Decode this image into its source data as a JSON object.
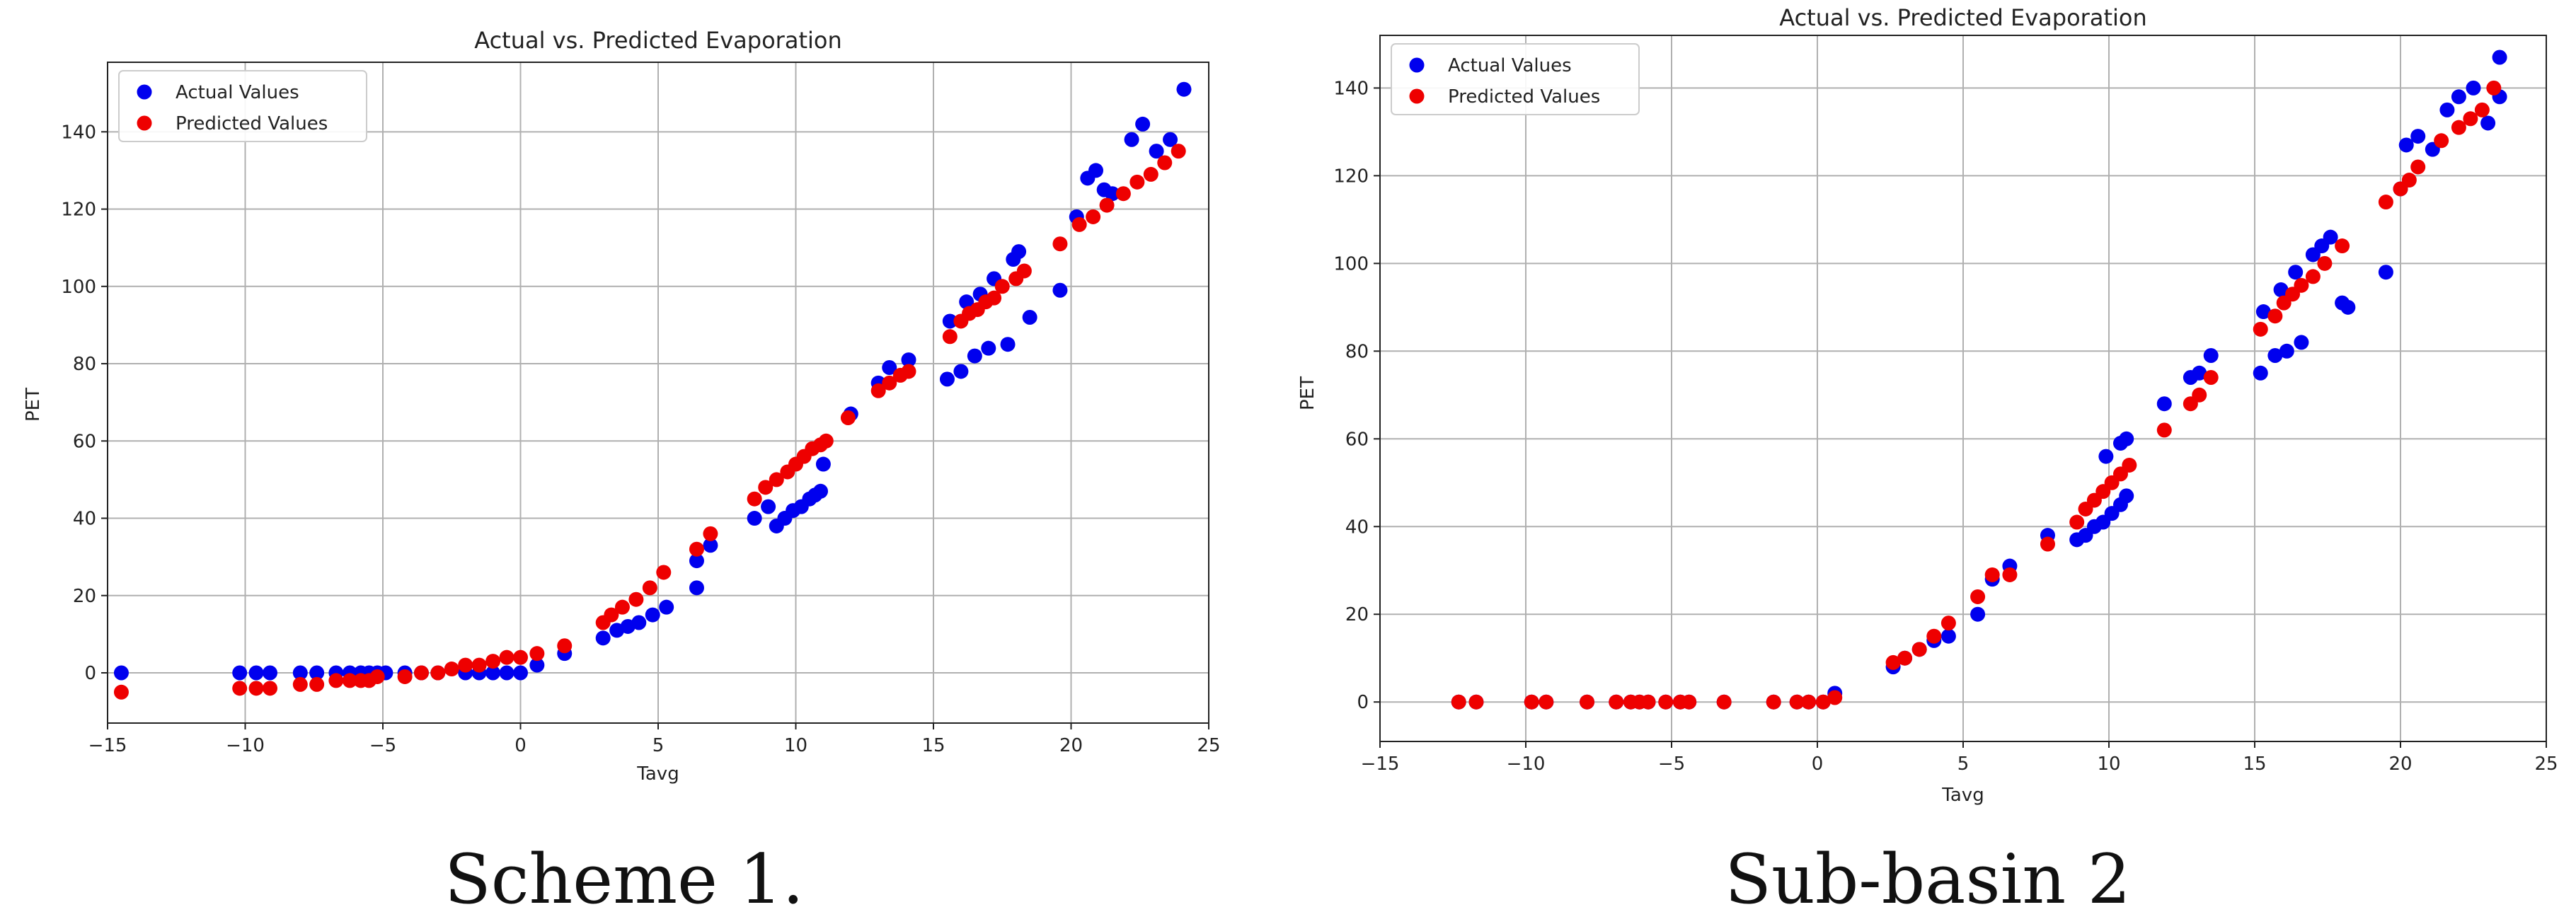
{
  "captions": [
    "Scheme 1.",
    "Sub-basin 2"
  ],
  "colors": {
    "actual": "#0000ee",
    "predicted": "#ee0000",
    "grid": "#b0b0b0"
  },
  "chart_data": [
    {
      "type": "scatter",
      "title": "Actual vs. Predicted Evaporation",
      "xlabel": "Tavg",
      "ylabel": "PET",
      "xlim": [
        -15,
        25
      ],
      "ylim": [
        -13,
        158
      ],
      "xticks": [
        -15,
        -10,
        -5,
        0,
        5,
        10,
        15,
        20,
        25
      ],
      "xtick_labels": [
        "−15",
        "−10",
        "−5",
        "0",
        "5",
        "10",
        "15",
        "20",
        "25"
      ],
      "yticks": [
        0,
        20,
        40,
        60,
        80,
        100,
        120,
        140
      ],
      "ytick_labels": [
        "0",
        "20",
        "40",
        "60",
        "80",
        "100",
        "120",
        "140"
      ],
      "grid": true,
      "legend": "top-left",
      "series": [
        {
          "name": "Actual Values",
          "color": "#0000ee",
          "x": [
            -14.5,
            -10.2,
            -9.6,
            -9.1,
            -8.0,
            -7.4,
            -6.7,
            -6.2,
            -5.8,
            -5.5,
            -5.2,
            -4.9,
            -4.2,
            -3.6,
            -3.0,
            -2.0,
            -1.5,
            -1.0,
            -0.5,
            0.0,
            0.6,
            1.6,
            3.0,
            3.5,
            3.9,
            4.3,
            4.8,
            5.3,
            6.4,
            6.9,
            8.5,
            9.0,
            9.3,
            9.6,
            9.9,
            10.2,
            10.5,
            10.7,
            10.9,
            11.0,
            12.0,
            13.0,
            13.4,
            14.1,
            15.5,
            15.6,
            16.0,
            16.2,
            16.5,
            16.7,
            17.0,
            17.2,
            17.7,
            17.9,
            18.1,
            18.5,
            19.6,
            20.2,
            20.6,
            20.9,
            21.2,
            21.5,
            22.2,
            22.6,
            23.1,
            23.6,
            24.1
          ],
          "y": [
            0,
            0,
            0,
            0,
            0,
            0,
            0,
            0,
            0,
            0,
            0,
            0,
            0,
            0,
            0,
            0,
            0,
            0,
            0,
            0,
            2,
            5,
            9,
            11,
            12,
            13,
            15,
            17,
            22,
            33,
            40,
            43,
            38,
            40,
            42,
            43,
            45,
            46,
            47,
            54,
            67,
            75,
            79,
            81,
            76,
            91,
            78,
            96,
            82,
            98,
            84,
            102,
            85,
            107,
            109,
            92,
            99,
            118,
            128,
            130,
            125,
            124,
            138,
            142,
            135,
            138,
            151
          ],
          "y_secondary": [
            0,
            0,
            0,
            0,
            0,
            0,
            0,
            0,
            0,
            0,
            0,
            0,
            0,
            0,
            0,
            0,
            0,
            0,
            0,
            0,
            0,
            0,
            0,
            0,
            0,
            0,
            0,
            0,
            29,
            0,
            0,
            0,
            0,
            0,
            0,
            0,
            0,
            0,
            0,
            0,
            0,
            0,
            0,
            0,
            0,
            0,
            0,
            0,
            0,
            0,
            0,
            0,
            0,
            0,
            0,
            0,
            0,
            0,
            0,
            0,
            0,
            0,
            0,
            0,
            0,
            0,
            0
          ]
        },
        {
          "name": "Predicted Values",
          "color": "#ee0000",
          "x": [
            -14.5,
            -10.2,
            -9.6,
            -9.1,
            -8.0,
            -7.4,
            -6.7,
            -6.2,
            -5.8,
            -5.5,
            -5.2,
            -4.2,
            -3.6,
            -3.0,
            -2.5,
            -2.0,
            -1.5,
            -1.0,
            -0.5,
            0.0,
            0.6,
            1.6,
            3.0,
            3.3,
            3.7,
            4.2,
            4.7,
            5.2,
            6.4,
            6.9,
            8.5,
            8.9,
            9.3,
            9.7,
            10.0,
            10.3,
            10.6,
            10.9,
            11.1,
            11.9,
            13.0,
            13.4,
            13.8,
            14.1,
            15.6,
            16.0,
            16.3,
            16.6,
            16.9,
            17.2,
            17.5,
            18.0,
            18.3,
            19.6,
            20.3,
            20.8,
            21.3,
            21.9,
            22.4,
            22.9,
            23.4,
            23.9
          ],
          "y": [
            -5,
            -4,
            -4,
            -4,
            -3,
            -3,
            -2,
            -2,
            -2,
            -2,
            -1,
            -1,
            0,
            0,
            1,
            2,
            2,
            3,
            4,
            4,
            5,
            7,
            13,
            15,
            17,
            19,
            22,
            26,
            32,
            36,
            45,
            48,
            50,
            52,
            54,
            56,
            58,
            59,
            60,
            66,
            73,
            75,
            77,
            78,
            87,
            91,
            93,
            94,
            96,
            97,
            100,
            102,
            104,
            111,
            116,
            118,
            121,
            124,
            127,
            129,
            132,
            135
          ]
        }
      ]
    },
    {
      "type": "scatter",
      "title": "Actual vs. Predicted Evaporation",
      "xlabel": "Tavg",
      "ylabel": "PET",
      "xlim": [
        -15,
        25
      ],
      "ylim": [
        -9,
        152
      ],
      "xticks": [
        -15,
        -10,
        -5,
        0,
        5,
        10,
        15,
        20,
        25
      ],
      "xtick_labels": [
        "−15",
        "−10",
        "−5",
        "0",
        "5",
        "10",
        "15",
        "20",
        "25"
      ],
      "yticks": [
        0,
        20,
        40,
        60,
        80,
        100,
        120,
        140
      ],
      "ytick_labels": [
        "0",
        "20",
        "40",
        "60",
        "80",
        "100",
        "120",
        "140"
      ],
      "grid": true,
      "legend": "top-left",
      "series": [
        {
          "name": "Actual Values",
          "color": "#0000ee",
          "x": [
            -12.3,
            -11.7,
            -9.8,
            -9.3,
            -7.9,
            -6.9,
            -6.4,
            -6.1,
            -5.8,
            -5.2,
            -4.7,
            -4.4,
            -3.2,
            -1.5,
            -0.7,
            -0.3,
            0.2,
            0.6,
            2.6,
            3.0,
            3.5,
            4.0,
            4.5,
            5.5,
            6.0,
            6.6,
            7.9,
            8.9,
            9.2,
            9.5,
            9.8,
            10.1,
            10.4,
            10.6,
            9.9,
            10.4,
            10.6,
            11.9,
            12.8,
            13.1,
            13.5,
            15.2,
            15.3,
            15.7,
            15.9,
            16.1,
            16.4,
            16.6,
            17.0,
            17.3,
            17.6,
            18.0,
            18.2,
            19.5,
            20.0,
            20.2,
            20.6,
            21.1,
            21.6,
            22.0,
            22.5,
            23.0,
            23.4
          ],
          "y": [
            0,
            0,
            0,
            0,
            0,
            0,
            0,
            0,
            0,
            0,
            0,
            0,
            0,
            0,
            0,
            0,
            0,
            2,
            8,
            10,
            12,
            14,
            15,
            20,
            28,
            31,
            38,
            37,
            38,
            40,
            41,
            43,
            45,
            47,
            56,
            59,
            60,
            68,
            74,
            75,
            79,
            75,
            89,
            79,
            94,
            80,
            98,
            82,
            102,
            104,
            106,
            91,
            90,
            98,
            117,
            127,
            129,
            126,
            135,
            138,
            140,
            132,
            147
          ],
          "y_secondary": [
            0,
            0,
            0,
            0,
            0,
            0,
            0,
            0,
            0,
            0,
            0,
            0,
            0,
            0,
            0,
            0,
            0,
            0,
            0,
            0,
            0,
            0,
            0,
            0,
            0,
            0,
            0,
            0,
            0,
            0,
            0,
            0,
            0,
            0,
            0,
            0,
            0,
            0,
            0,
            0,
            0,
            0,
            0,
            0,
            0,
            0,
            0,
            0,
            0,
            0,
            0,
            0,
            0,
            0,
            0,
            0,
            0,
            0,
            0,
            0,
            0,
            0,
            138
          ]
        },
        {
          "name": "Predicted Values",
          "color": "#ee0000",
          "x": [
            -12.3,
            -11.7,
            -9.8,
            -9.3,
            -7.9,
            -6.9,
            -6.4,
            -6.1,
            -5.8,
            -5.2,
            -4.7,
            -4.4,
            -3.2,
            -1.5,
            -0.7,
            -0.3,
            0.2,
            0.6,
            2.6,
            3.0,
            3.5,
            4.0,
            4.5,
            5.5,
            6.0,
            6.6,
            7.9,
            8.9,
            9.2,
            9.5,
            9.8,
            10.1,
            10.4,
            10.7,
            11.9,
            12.8,
            13.1,
            13.5,
            15.2,
            15.7,
            16.0,
            16.3,
            16.6,
            17.0,
            17.4,
            18.0,
            19.5,
            20.0,
            20.3,
            20.6,
            21.4,
            22.0,
            22.4,
            22.8,
            23.2
          ],
          "y": [
            0,
            0,
            0,
            0,
            0,
            0,
            0,
            0,
            0,
            0,
            0,
            0,
            0,
            0,
            0,
            0,
            0,
            1,
            9,
            10,
            12,
            15,
            18,
            24,
            29,
            29,
            36,
            41,
            44,
            46,
            48,
            50,
            52,
            54,
            62,
            68,
            70,
            74,
            85,
            88,
            91,
            93,
            95,
            97,
            100,
            104,
            114,
            117,
            119,
            122,
            128,
            131,
            133,
            135,
            140
          ]
        }
      ]
    }
  ]
}
